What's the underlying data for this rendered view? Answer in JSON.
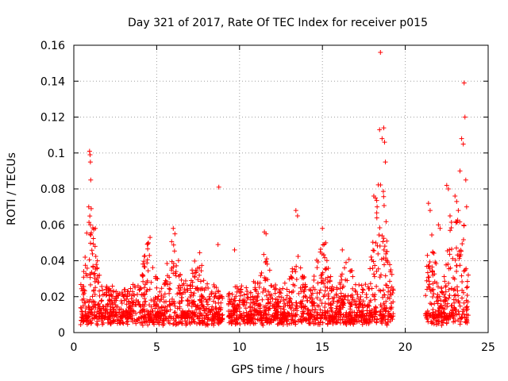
{
  "chart_data": {
    "type": "scatter",
    "title": "Day 321 of 2017, Rate Of TEC Index for receiver p015",
    "xlabel": "GPS time / hours",
    "ylabel": "ROTI / TECUs",
    "xlim": [
      0,
      25
    ],
    "ylim": [
      0,
      0.16
    ],
    "x_ticks": [
      "0",
      "5",
      "10",
      "15",
      "20",
      "25"
    ],
    "y_ticks": [
      "0",
      "0.02",
      "0.04",
      "0.06",
      "0.08",
      "0.1",
      "0.12",
      "0.14",
      "0.16"
    ],
    "grid": true,
    "marker": "plus",
    "color": "#ff0000",
    "gaps_hours": [
      [
        9.0,
        9.3
      ],
      [
        19.3,
        21.2
      ]
    ],
    "series": [
      {
        "x": [
          0.95,
          0.98,
          1.0,
          1.02,
          0.9,
          1.05,
          1.0,
          1.3,
          4.6,
          4.5,
          6.0,
          6.1,
          8.75,
          8.7,
          9.7,
          11.5,
          11.6,
          13.4,
          13.5,
          15.0,
          15.2,
          16.2,
          18.1,
          18.2,
          18.3,
          18.45,
          18.5,
          18.6,
          18.7,
          18.75,
          18.8,
          21.4,
          21.5,
          22.0,
          22.1,
          22.5,
          22.6,
          22.7,
          23.0,
          23.1,
          23.2,
          23.3,
          23.4,
          23.5,
          23.55,
          23.6,
          23.65,
          23.7
        ],
        "y": [
          0.101,
          0.099,
          0.095,
          0.085,
          0.07,
          0.069,
          0.06,
          0.058,
          0.053,
          0.05,
          0.058,
          0.055,
          0.081,
          0.049,
          0.046,
          0.056,
          0.055,
          0.068,
          0.065,
          0.058,
          0.05,
          0.046,
          0.076,
          0.075,
          0.07,
          0.113,
          0.156,
          0.108,
          0.114,
          0.106,
          0.095,
          0.072,
          0.068,
          0.06,
          0.058,
          0.082,
          0.08,
          0.065,
          0.076,
          0.073,
          0.068,
          0.09,
          0.108,
          0.105,
          0.139,
          0.12,
          0.085,
          0.07
        ]
      }
    ]
  }
}
